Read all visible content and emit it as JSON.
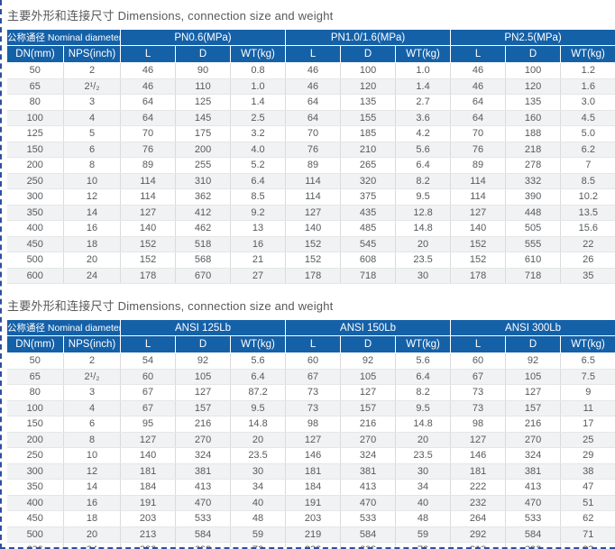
{
  "accent_color": "#1561a8",
  "marquee_color": "#2d4fa0",
  "tables": [
    {
      "title": "主要外形和连接尺寸 Dimensions, connection size and weight",
      "nominal_header": "公称通径 Nominal diameter",
      "groups": [
        "PN0.6(MPa)",
        "PN1.0/1.6(MPa)",
        "PN2.5(MPa)"
      ],
      "sub_headers": [
        "DN(mm)",
        "NPS(inch)",
        "L",
        "D",
        "WT(kg)",
        "L",
        "D",
        "WT(kg)",
        "L",
        "D",
        "WT(kg)"
      ],
      "rows": [
        [
          "50",
          "2",
          "46",
          "90",
          "0.8",
          "46",
          "100",
          "1.0",
          "46",
          "100",
          "1.2"
        ],
        [
          "65",
          "2¹/₂",
          "46",
          "110",
          "1.0",
          "46",
          "120",
          "1.4",
          "46",
          "120",
          "1.6"
        ],
        [
          "80",
          "3",
          "64",
          "125",
          "1.4",
          "64",
          "135",
          "2.7",
          "64",
          "135",
          "3.0"
        ],
        [
          "100",
          "4",
          "64",
          "145",
          "2.5",
          "64",
          "155",
          "3.6",
          "64",
          "160",
          "4.5"
        ],
        [
          "125",
          "5",
          "70",
          "175",
          "3.2",
          "70",
          "185",
          "4.2",
          "70",
          "188",
          "5.0"
        ],
        [
          "150",
          "6",
          "76",
          "200",
          "4.0",
          "76",
          "210",
          "5.6",
          "76",
          "218",
          "6.2"
        ],
        [
          "200",
          "8",
          "89",
          "255",
          "5.2",
          "89",
          "265",
          "6.4",
          "89",
          "278",
          "7"
        ],
        [
          "250",
          "10",
          "114",
          "310",
          "6.4",
          "114",
          "320",
          "8.2",
          "114",
          "332",
          "8.5"
        ],
        [
          "300",
          "12",
          "114",
          "362",
          "8.5",
          "114",
          "375",
          "9.5",
          "114",
          "390",
          "10.2"
        ],
        [
          "350",
          "14",
          "127",
          "412",
          "9.2",
          "127",
          "435",
          "12.8",
          "127",
          "448",
          "13.5"
        ],
        [
          "400",
          "16",
          "140",
          "462",
          "13",
          "140",
          "485",
          "14.8",
          "140",
          "505",
          "15.6"
        ],
        [
          "450",
          "18",
          "152",
          "518",
          "16",
          "152",
          "545",
          "20",
          "152",
          "555",
          "22"
        ],
        [
          "500",
          "20",
          "152",
          "568",
          "21",
          "152",
          "608",
          "23.5",
          "152",
          "610",
          "26"
        ],
        [
          "600",
          "24",
          "178",
          "670",
          "27",
          "178",
          "718",
          "30",
          "178",
          "718",
          "35"
        ]
      ]
    },
    {
      "title": "主要外形和连接尺寸 Dimensions, connection size and weight",
      "nominal_header": "公称通径 Nominal diameter",
      "groups": [
        "ANSI 125Lb",
        "ANSI 150Lb",
        "ANSI 300Lb"
      ],
      "sub_headers": [
        "DN(mm)",
        "NPS(inch)",
        "L",
        "D",
        "WT(kg)",
        "L",
        "D",
        "WT(kg)",
        "L",
        "D",
        "WT(kg)"
      ],
      "rows": [
        [
          "50",
          "2",
          "54",
          "92",
          "5.6",
          "60",
          "92",
          "5.6",
          "60",
          "92",
          "6.5"
        ],
        [
          "65",
          "2¹/₂",
          "60",
          "105",
          "6.4",
          "67",
          "105",
          "6.4",
          "67",
          "105",
          "7.5"
        ],
        [
          "80",
          "3",
          "67",
          "127",
          "87.2",
          "73",
          "127",
          "8.2",
          "73",
          "127",
          "9"
        ],
        [
          "100",
          "4",
          "67",
          "157",
          "9.5",
          "73",
          "157",
          "9.5",
          "73",
          "157",
          "11"
        ],
        [
          "150",
          "6",
          "95",
          "216",
          "14.8",
          "98",
          "216",
          "14.8",
          "98",
          "216",
          "17"
        ],
        [
          "200",
          "8",
          "127",
          "270",
          "20",
          "127",
          "270",
          "20",
          "127",
          "270",
          "25"
        ],
        [
          "250",
          "10",
          "140",
          "324",
          "23.5",
          "146",
          "324",
          "23.5",
          "146",
          "324",
          "29"
        ],
        [
          "300",
          "12",
          "181",
          "381",
          "30",
          "181",
          "381",
          "30",
          "181",
          "381",
          "38"
        ],
        [
          "350",
          "14",
          "184",
          "413",
          "34",
          "184",
          "413",
          "34",
          "222",
          "413",
          "47"
        ],
        [
          "400",
          "16",
          "191",
          "470",
          "40",
          "191",
          "470",
          "40",
          "232",
          "470",
          "51"
        ],
        [
          "450",
          "18",
          "203",
          "533",
          "48",
          "203",
          "533",
          "48",
          "264",
          "533",
          "62"
        ],
        [
          "500",
          "20",
          "213",
          "584",
          "59",
          "219",
          "584",
          "59",
          "292",
          "584",
          "71"
        ],
        [
          "600",
          "24",
          "222",
          "692",
          "78",
          "222",
          "692",
          "78",
          "318",
          "692",
          "83"
        ]
      ]
    }
  ]
}
